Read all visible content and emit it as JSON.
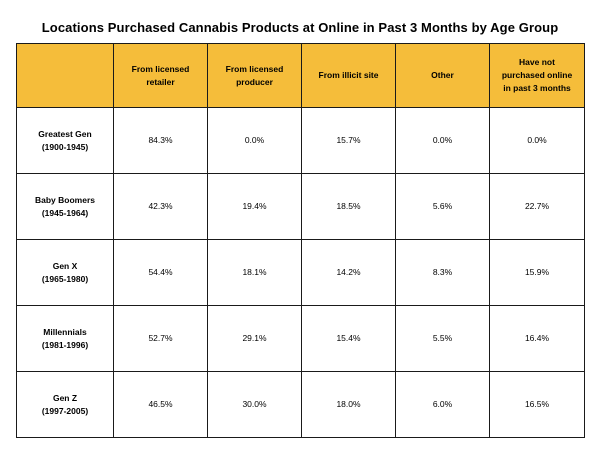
{
  "chart_data": {
    "type": "table",
    "title": "Locations Purchased Cannabis Products at Online in Past 3 Months by Age Group",
    "columns": [
      [
        "From licensed",
        "retailer"
      ],
      [
        "From licensed",
        "producer"
      ],
      [
        "From illicit site"
      ],
      [
        "Other"
      ],
      [
        "Have not",
        "purchased online",
        "in past 3 months"
      ]
    ],
    "rows": [
      {
        "label": [
          "Greatest Gen",
          "(1900-1945)"
        ],
        "values": [
          "84.3%",
          "0.0%",
          "15.7%",
          "0.0%",
          "0.0%"
        ]
      },
      {
        "label": [
          "Baby Boomers",
          "(1945-1964)"
        ],
        "values": [
          "42.3%",
          "19.4%",
          "18.5%",
          "5.6%",
          "22.7%"
        ]
      },
      {
        "label": [
          "Gen X",
          "(1965-1980)"
        ],
        "values": [
          "54.4%",
          "18.1%",
          "14.2%",
          "8.3%",
          "15.9%"
        ]
      },
      {
        "label": [
          "Millennials",
          "(1981-1996)"
        ],
        "values": [
          "52.7%",
          "29.1%",
          "15.4%",
          "5.5%",
          "16.4%"
        ]
      },
      {
        "label": [
          "Gen Z",
          "(1997-2005)"
        ],
        "values": [
          "46.5%",
          "30.0%",
          "18.0%",
          "6.0%",
          "16.5%"
        ]
      }
    ]
  },
  "colors": {
    "header_fill": "#f5bd3a",
    "border": "#1a1a1a"
  }
}
